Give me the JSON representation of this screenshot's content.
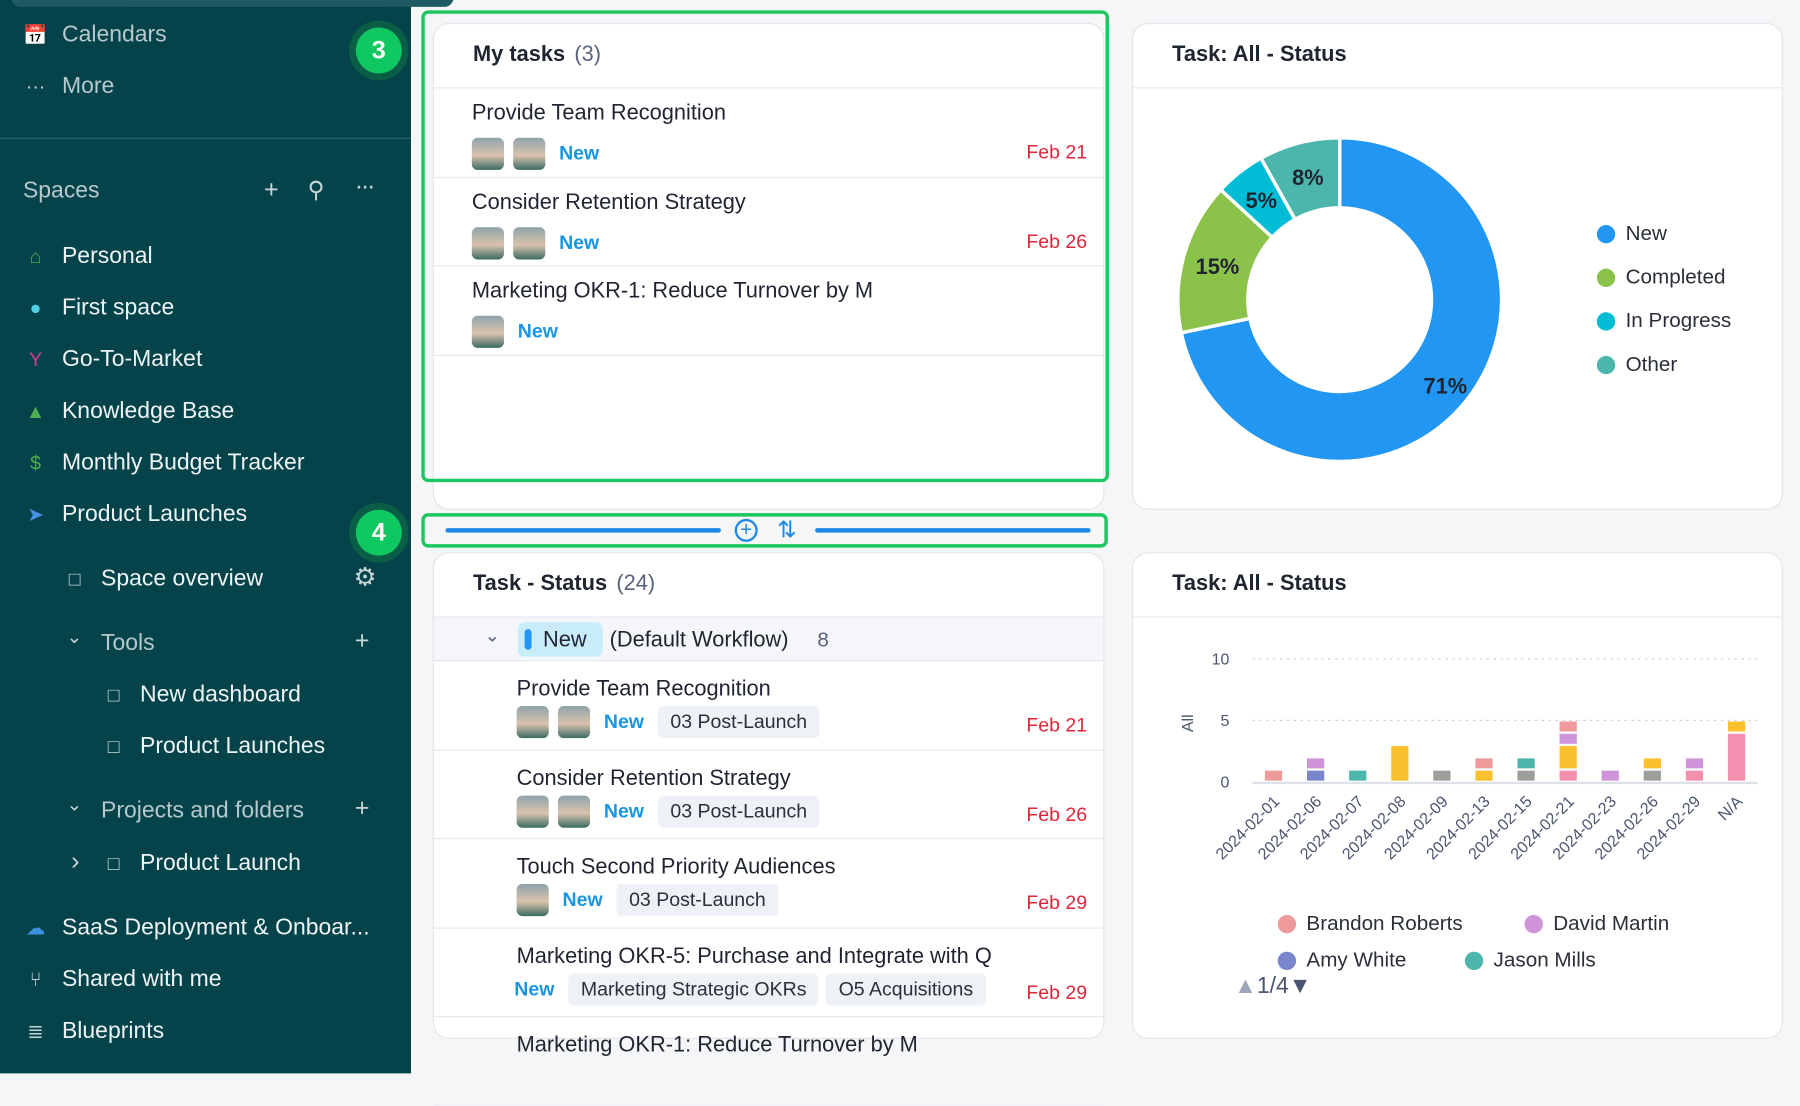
{
  "sidebar": {
    "top_items": [
      {
        "label": "Calendars",
        "icon": "calendar-icon"
      },
      {
        "label": "More",
        "icon": "more-icon"
      }
    ],
    "spaces_title": "Spaces",
    "spaces": [
      {
        "label": "Personal",
        "icon": "home-icon",
        "color": "#4caf50"
      },
      {
        "label": "First space",
        "icon": "planet-icon",
        "color": "#4dd0e1"
      },
      {
        "label": "Go-To-Market",
        "icon": "branch-icon",
        "color": "#d63a8a"
      },
      {
        "label": "Knowledge Base",
        "icon": "graduation-cap-icon",
        "color": "#4caf50"
      },
      {
        "label": "Monthly Budget Tracker",
        "icon": "dollar-icon",
        "color": "#4caf50"
      },
      {
        "label": "Product Launches",
        "icon": "rocket-icon",
        "color": "#4a90e2"
      }
    ],
    "space_overview": "Space overview",
    "tools_label": "Tools",
    "tools": [
      "New dashboard",
      "Product Launches"
    ],
    "projects_label": "Projects and folders",
    "projects": [
      "Product Launch"
    ],
    "bottom": [
      {
        "label": "SaaS Deployment & Onboar...",
        "icon": "cloud-icon",
        "color": "#3d8fe0"
      },
      {
        "label": "Shared with me",
        "icon": "share-icon",
        "color": "#c8d6d8"
      },
      {
        "label": "Blueprints",
        "icon": "layers-icon",
        "color": "#c8d6d8"
      }
    ],
    "badges": [
      "3",
      "4"
    ]
  },
  "my_tasks": {
    "title": "My tasks",
    "count": "(3)",
    "items": [
      {
        "title": "Provide Team Recognition",
        "avatars": 2,
        "status": "New",
        "due": "Feb 21"
      },
      {
        "title": "Consider Retention Strategy",
        "avatars": 2,
        "status": "New",
        "due": "Feb 26"
      },
      {
        "title": "Marketing OKR-1: Reduce Turnover by M",
        "avatars": 1,
        "status": "New",
        "due": ""
      }
    ]
  },
  "task_status": {
    "title": "Task - Status",
    "count": "(24)",
    "group": {
      "status": "New",
      "workflow": "(Default Workflow)",
      "count": "8",
      "color": "#2196f3"
    },
    "items": [
      {
        "title": "Provide Team Recognition",
        "avatars": 2,
        "status": "New",
        "tags": [
          "03 Post-Launch"
        ],
        "due": "Feb 21"
      },
      {
        "title": "Consider Retention Strategy",
        "avatars": 2,
        "status": "New",
        "tags": [
          "03 Post-Launch"
        ],
        "due": "Feb 26"
      },
      {
        "title": "Touch Second Priority Audiences",
        "avatars": 1,
        "status": "New",
        "tags": [
          "03 Post-Launch"
        ],
        "due": "Feb 29"
      },
      {
        "title": "Marketing OKR-5: Purchase and Integrate with Q",
        "avatars": 0,
        "status": "New",
        "tags": [
          "Marketing Strategic OKRs",
          "O5 Acquisitions"
        ],
        "due": "Feb 29"
      },
      {
        "title": "Marketing OKR-1: Reduce Turnover by M",
        "avatars": 0,
        "status": "",
        "tags": [],
        "due": ""
      }
    ]
  },
  "chart_data": [
    {
      "type": "pie",
      "title": "Task: All - Status",
      "donut": true,
      "legend": "right",
      "labels": [
        "New",
        "Completed",
        "In Progress",
        "Other"
      ],
      "values": [
        71,
        15,
        5,
        8
      ],
      "colors": [
        "#2196f3",
        "#8bc34a",
        "#00bcd4",
        "#4db6ac"
      ]
    },
    {
      "type": "bar",
      "stacked": true,
      "title": "Task: All - Status",
      "ylabel": "All",
      "ylim": [
        0,
        10
      ],
      "yticks": [
        0,
        5,
        10
      ],
      "grid": true,
      "legend": "bottom",
      "legend_page": "1/4",
      "categories": [
        "2024-02-01",
        "2024-02-06",
        "2024-02-07",
        "2024-02-08",
        "2024-02-09",
        "2024-02-13",
        "2024-02-15",
        "2024-02-21",
        "2024-02-23",
        "2024-02-26",
        "2024-02-29",
        "N/A"
      ],
      "series": [
        {
          "color": "#f48fb1",
          "values": [
            0,
            0,
            0,
            0,
            0,
            0,
            0,
            1,
            0,
            0,
            1,
            4
          ]
        },
        {
          "color": "#9e9e9e",
          "values": [
            0,
            0,
            0,
            0,
            1,
            0,
            1,
            0,
            0,
            1,
            0,
            0
          ]
        },
        {
          "name": "Amy White",
          "color": "#7986cb",
          "values": [
            0,
            1,
            0,
            0,
            0,
            0,
            0,
            0,
            0,
            0,
            0,
            0
          ]
        },
        {
          "name": "Jason Mills",
          "color": "#4db6ac",
          "values": [
            0,
            0,
            1,
            0,
            0,
            0,
            1,
            0,
            0,
            0,
            0,
            0
          ]
        },
        {
          "color": "#fbc02d",
          "values": [
            0,
            0,
            0,
            3,
            0,
            1,
            0,
            2,
            0,
            1,
            0,
            1
          ]
        },
        {
          "name": "David Martin",
          "color": "#ce93d8",
          "values": [
            0,
            1,
            0,
            0,
            0,
            0,
            0,
            1,
            1,
            0,
            1,
            0
          ]
        },
        {
          "name": "Brandon Roberts",
          "color": "#ef9a9a",
          "values": [
            1,
            0,
            0,
            0,
            0,
            1,
            0,
            1,
            0,
            0,
            0,
            0
          ]
        }
      ]
    }
  ]
}
